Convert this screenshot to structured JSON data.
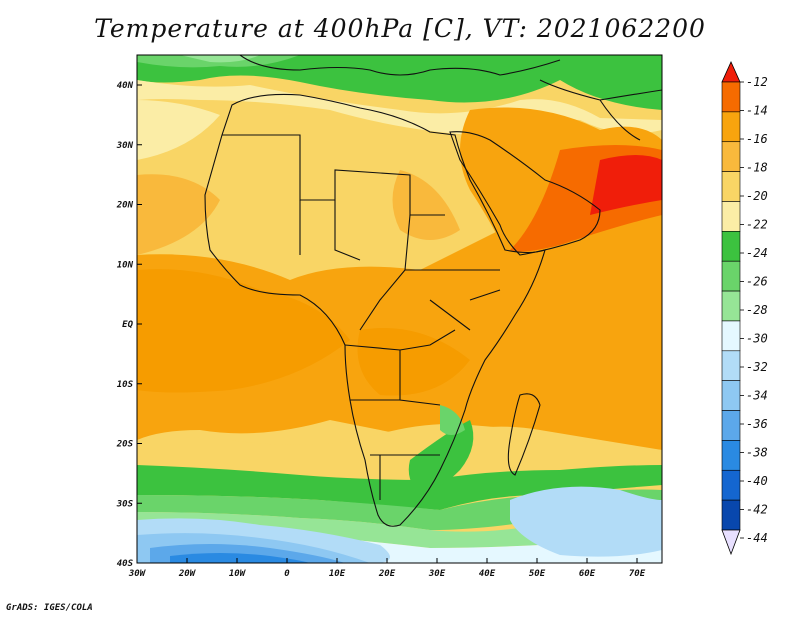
{
  "title": "Temperature at 400hPa [C], VT: 2021062200",
  "credit": "GrADS: IGES/COLA",
  "axes": {
    "x_ticks": [
      "30W",
      "20W",
      "10W",
      "0",
      "10E",
      "20E",
      "30E",
      "40E",
      "50E",
      "60E",
      "70E"
    ],
    "y_ticks": [
      "40N",
      "30N",
      "20N",
      "10N",
      "EQ",
      "10S",
      "20S",
      "30S",
      "40S"
    ]
  },
  "colorbar": {
    "labels": [
      "-12",
      "-14",
      "-16",
      "-18",
      "-20",
      "-22",
      "-24",
      "-26",
      "-28",
      "-30",
      "-32",
      "-34",
      "-36",
      "-38",
      "-40",
      "-42",
      "-44"
    ],
    "colors": [
      "#f01e0a",
      "#f66b00",
      "#f8a40e",
      "#f9b93c",
      "#f9d565",
      "#fbeda6",
      "#3cc23f",
      "#6ad46a",
      "#96e596",
      "#e5f8ff",
      "#b2dcf7",
      "#8ec8f2",
      "#5ca8ea",
      "#2a8ae2",
      "#1466d0",
      "#0847ad",
      "#0a1a7a"
    ]
  }
}
